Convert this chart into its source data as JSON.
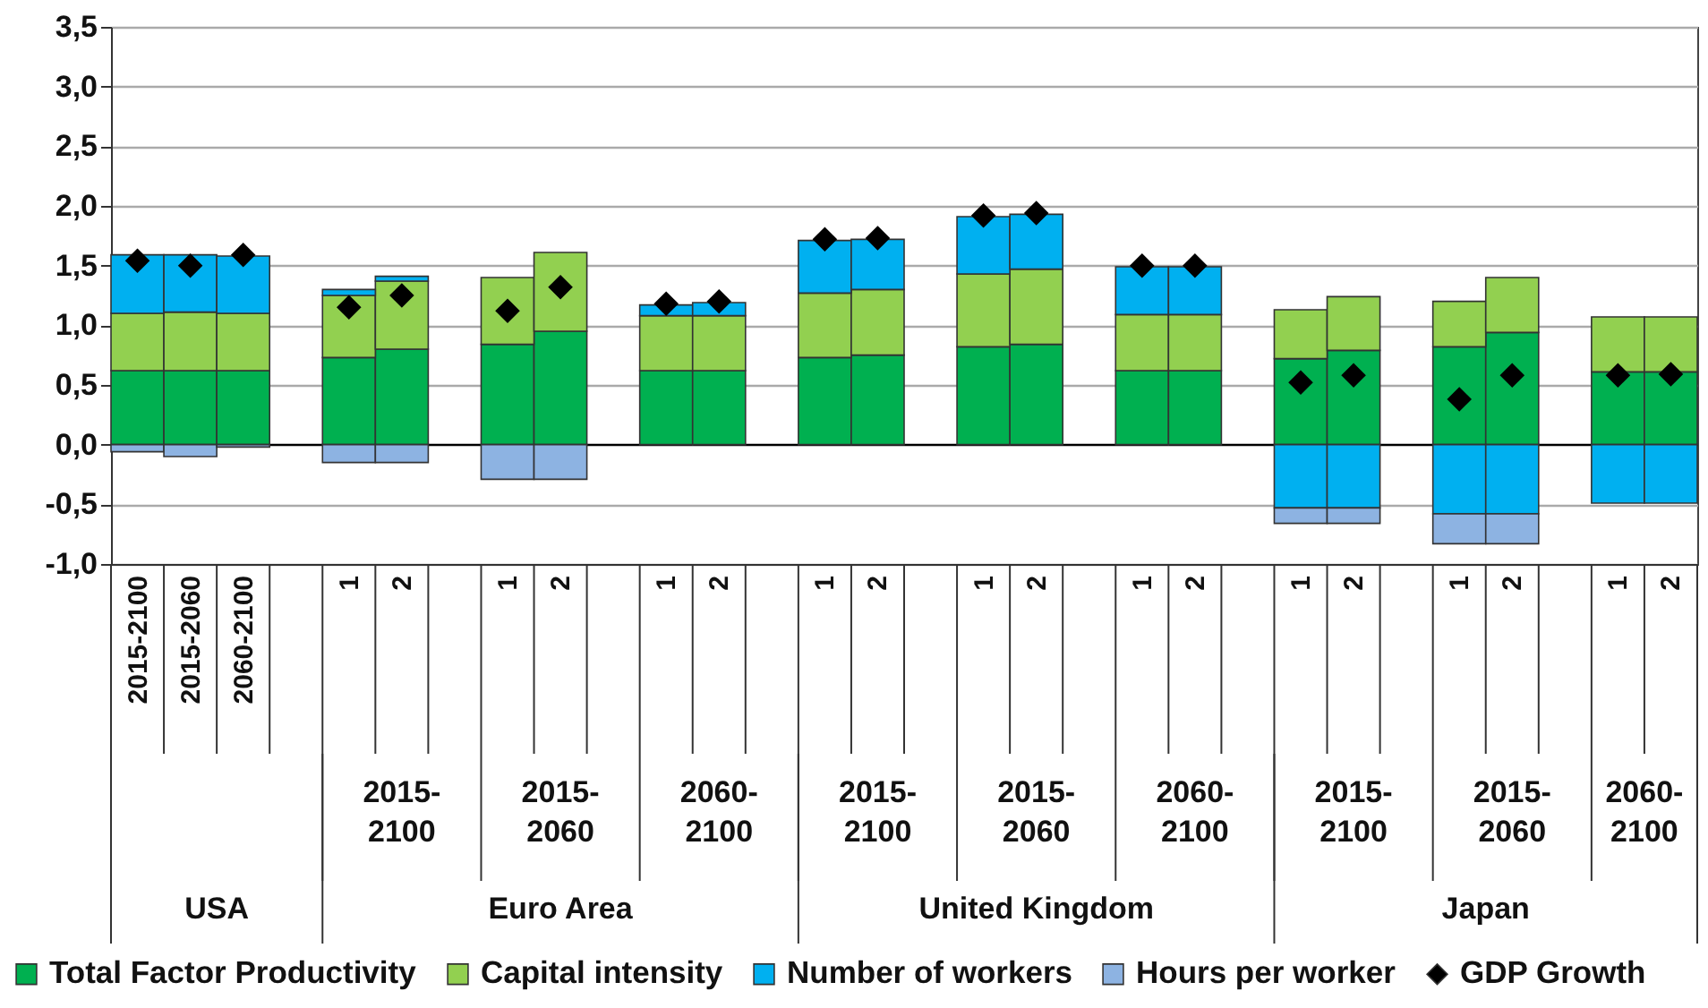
{
  "chart_data": {
    "type": "bar",
    "stacked": true,
    "grid": "y",
    "legend": "bottom",
    "marker": "diamond",
    "categories": [
      "2015-2100",
      "2015-2060",
      "2060-2100",
      null,
      "1",
      "2",
      null,
      "1",
      "2",
      null,
      "1",
      "2",
      null,
      "1",
      "2",
      null,
      "1",
      "2",
      null,
      "1",
      "2",
      null,
      "1",
      "2",
      null,
      "1",
      "2",
      null,
      "1",
      "2"
    ],
    "ylim": [
      -1,
      3.5
    ],
    "yticks": [
      {
        "value": -1,
        "label": "-1,0"
      },
      {
        "value": -0.5,
        "label": "-0,5"
      },
      {
        "value": 0,
        "label": "0,0"
      },
      {
        "value": 0.5,
        "label": "0,5"
      },
      {
        "value": 1,
        "label": "1,0"
      },
      {
        "value": 1.5,
        "label": "1,5"
      },
      {
        "value": 2,
        "label": "2,0"
      },
      {
        "value": 2.5,
        "label": "2,5"
      },
      {
        "value": 3,
        "label": "3,0"
      },
      {
        "value": 3.5,
        "label": "3,5"
      }
    ],
    "annotations": [
      "2015-2100",
      "2015-2060",
      "2060-2100",
      "2015-2100",
      "2015-2060",
      "2060-2100",
      "2015-2100",
      "2015-2060",
      "2060-2100",
      "USA",
      "Euro Area",
      "United Kingdom",
      "Japan"
    ],
    "series": [
      {
        "name": "Total Factor Productivity",
        "color": "#00b050",
        "values": [
          0.62,
          0.62,
          0.62,
          null,
          0.73,
          0.8,
          null,
          0.84,
          0.95,
          null,
          0.62,
          0.62,
          null,
          0.73,
          0.75,
          null,
          0.82,
          0.84,
          null,
          0.62,
          0.62,
          null,
          0.72,
          0.79,
          null,
          0.82,
          0.94,
          null,
          0.61,
          0.61
        ]
      },
      {
        "name": "Capital intensity",
        "color": "#92d050",
        "values": [
          0.48,
          0.49,
          0.48,
          null,
          0.52,
          0.57,
          null,
          0.56,
          0.66,
          null,
          0.46,
          0.46,
          null,
          0.54,
          0.55,
          null,
          0.61,
          0.63,
          null,
          0.47,
          0.47,
          null,
          0.41,
          0.45,
          null,
          0.38,
          0.46,
          null,
          0.46,
          0.46
        ]
      },
      {
        "name": "Number of workers",
        "color": "#00b0f0",
        "values": [
          0.49,
          0.48,
          0.48,
          null,
          0.05,
          0.04,
          null,
          null,
          null,
          null,
          0.09,
          0.11,
          null,
          0.44,
          0.42,
          null,
          0.48,
          0.46,
          null,
          0.4,
          0.4,
          null,
          -0.53,
          -0.53,
          null,
          -0.58,
          -0.58,
          null,
          -0.49,
          -0.49
        ]
      },
      {
        "name": "Hours per worker",
        "color": "#8db3e2",
        "values": [
          -0.06,
          -0.1,
          -0.02,
          null,
          -0.15,
          -0.15,
          null,
          -0.29,
          -0.29,
          null,
          null,
          null,
          null,
          null,
          null,
          null,
          null,
          null,
          null,
          null,
          null,
          null,
          -0.13,
          -0.13,
          null,
          -0.25,
          -0.25,
          null,
          null,
          null
        ]
      },
      {
        "name": "GDP Growth",
        "type": "scatter",
        "color": "#000000",
        "values": [
          1.54,
          1.5,
          1.59,
          null,
          1.15,
          1.25,
          null,
          1.12,
          1.32,
          null,
          1.18,
          1.2,
          null,
          1.72,
          1.73,
          null,
          1.92,
          1.94,
          null,
          1.5,
          1.5,
          null,
          0.52,
          0.58,
          null,
          0.38,
          0.58,
          null,
          0.58,
          0.59
        ]
      }
    ]
  }
}
